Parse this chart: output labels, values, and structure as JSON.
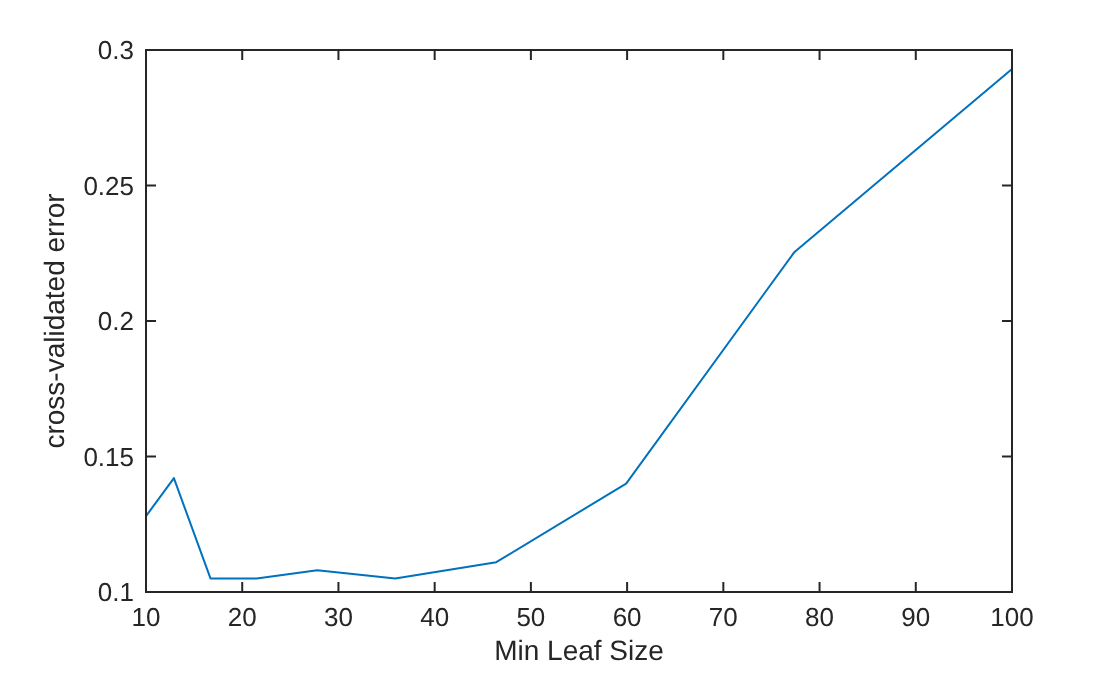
{
  "chart_data": {
    "type": "line",
    "xlabel": "Min Leaf Size",
    "ylabel": "cross-validated error",
    "x": [
      10,
      12.9,
      16.7,
      21.5,
      27.8,
      35.9,
      46.4,
      59.9,
      77.4,
      100
    ],
    "series": [
      {
        "color": "#0072bd",
        "values": [
          0.128,
          0.142,
          0.105,
          0.105,
          0.108,
          0.105,
          0.111,
          0.14,
          0.2255,
          0.293
        ]
      }
    ],
    "xlim": [
      10,
      100
    ],
    "xticks": [
      10,
      20,
      30,
      40,
      50,
      60,
      70,
      80,
      90,
      100
    ],
    "ylim": [
      0.1,
      0.3
    ],
    "yticks": [
      0.1,
      0.15,
      0.2,
      0.25,
      0.3
    ],
    "grid": false,
    "marker": "none",
    "line_style": "solid"
  }
}
